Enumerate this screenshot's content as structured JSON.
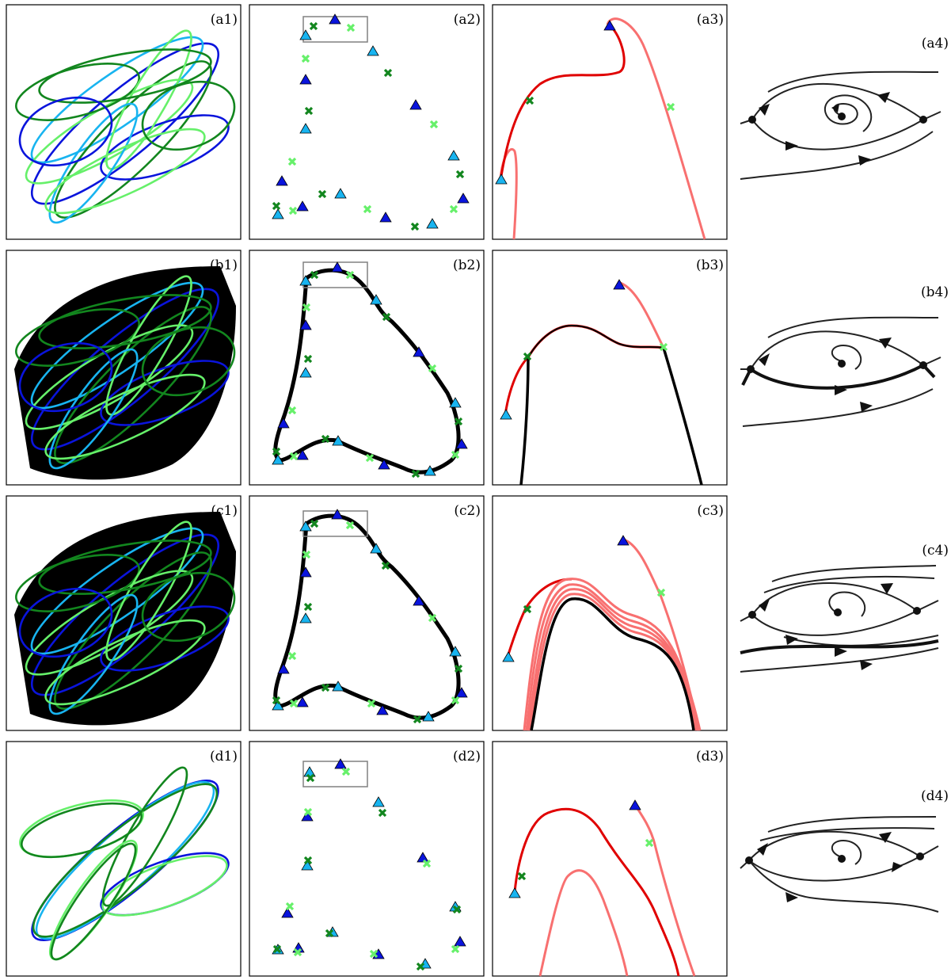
{
  "rows": [
    {
      "key": "a",
      "labels": [
        "(a1)",
        "(a2)",
        "(a3)",
        "(a4)"
      ]
    },
    {
      "key": "b",
      "labels": [
        "(b1)",
        "(b2)",
        "(b3)",
        "(b4)"
      ]
    },
    {
      "key": "c",
      "labels": [
        "(c1)",
        "(c2)",
        "(c3)",
        "(c4)"
      ]
    },
    {
      "key": "d",
      "labels": [
        "(d1)",
        "(d2)",
        "(d3)",
        "(d4)"
      ]
    }
  ],
  "colors": {
    "blue": "#0a14dc",
    "cyan": "#18b4f0",
    "green": "#12861e",
    "lightgreen": "#66f06a",
    "red": "#e00000",
    "salmon": "#f87070",
    "black": "#000000",
    "gray": "#808080"
  },
  "icons": {
    "triangle": "triangle-marker-icon",
    "cross": "cross-marker-icon",
    "fixed_point": "fixed-point-dot-icon",
    "arrow": "flow-arrow-icon"
  }
}
